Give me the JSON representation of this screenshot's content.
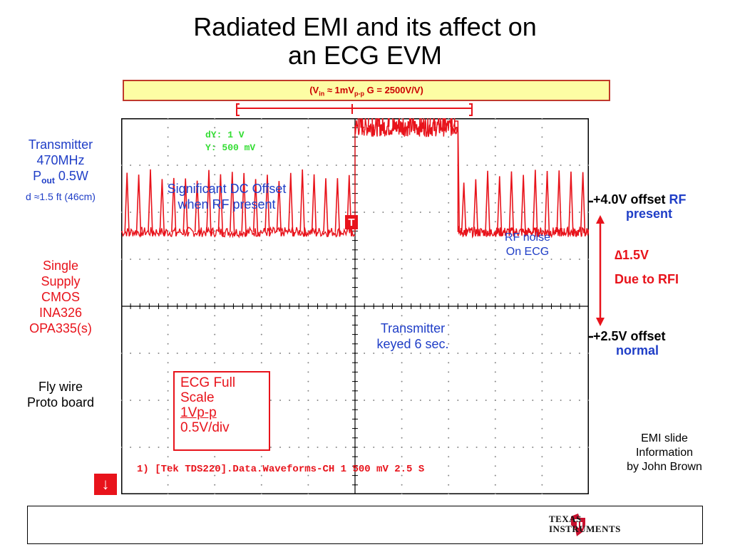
{
  "title": {
    "line1": "Radiated EMI and its affect on",
    "line2": "an ECG EVM"
  },
  "conditions": {
    "open": "(V",
    "vin_sub": "in",
    "approx": " ≈ 1mV",
    "pp_sub": "p-p",
    "gain": "  G = 2500V/V)"
  },
  "transmitter_info": {
    "line1": "Transmitter",
    "line2": "470MHz",
    "pout_p": "P",
    "pout_sub": "out",
    "pout_val": " 0.5W",
    "distance": "d ≈1.5 ft (46cm)"
  },
  "supply_info": [
    "Single",
    "Supply",
    "CMOS",
    "INA326",
    "OPA335(s)"
  ],
  "board_info": [
    "Fly wire",
    "Proto board"
  ],
  "annotations": {
    "dc_offset": [
      "Significant DC Offset",
      "when RF present"
    ],
    "rf_noise": [
      "RF noise",
      "On ECG"
    ],
    "transmitter_keyed": [
      "Transmitter",
      "keyed 6 sec."
    ],
    "offset_rf_prefix": "+",
    "offset_rf_main": "4.0V offset ",
    "offset_rf_accent": "RF",
    "offset_rf_line2": "present",
    "delta_symbol": "∆",
    "delta_value": "1.5V",
    "delta_cause": "Due to RFI",
    "offset_normal_prefix": "+",
    "offset_normal_main": "2.5V offset",
    "offset_normal_line2": "normal",
    "emi_credit": [
      "EMI slide",
      "Information",
      "by John Brown"
    ]
  },
  "ecg_box": {
    "line1": "ECG  Full",
    "line2": "Scale",
    "line3": "1Vp-p",
    "line4": "0.5V/div"
  },
  "scope": {
    "cursor_dy": "dY: 1  V",
    "cursor_y": "Y: 500 mV",
    "readout": "1) [Tek TDS220].Data.Waveforms-CH 1 500 mV 2.5  S",
    "trigger_marker": "T",
    "down_marker": "↓"
  },
  "footer": {
    "logo_line1": "Texas",
    "logo_line2": "Instruments"
  },
  "colors": {
    "trace": "#e8131b",
    "grid_dots": "#888888",
    "cursor_text": "#33dd33",
    "annotation_blue": "#1f3ec7",
    "accent_red": "#e8131b",
    "ti_red": "#c8102e"
  },
  "chart_data": {
    "type": "line",
    "title": "",
    "xlabel": "",
    "ylabel": "",
    "x_scale": "2.5 S/div",
    "y_scale": "500 mV/div",
    "grid": true,
    "xlim": [
      0,
      25
    ],
    "ylim": [
      0,
      4
    ],
    "series": [
      {
        "segments": [
          {
            "x_start": 0,
            "x_end": 12.5,
            "baseline_V": 2.5,
            "peak_V": 3.3,
            "beats": 20
          },
          {
            "x_start": 12.5,
            "x_end": 18.0,
            "baseline_V": 4.0,
            "peak_V": 5.0,
            "beats": 10
          },
          {
            "x_start": 18.0,
            "x_end": 25.0,
            "baseline_V": 2.5,
            "peak_V": 3.3,
            "beats": 11
          }
        ]
      }
    ]
  }
}
